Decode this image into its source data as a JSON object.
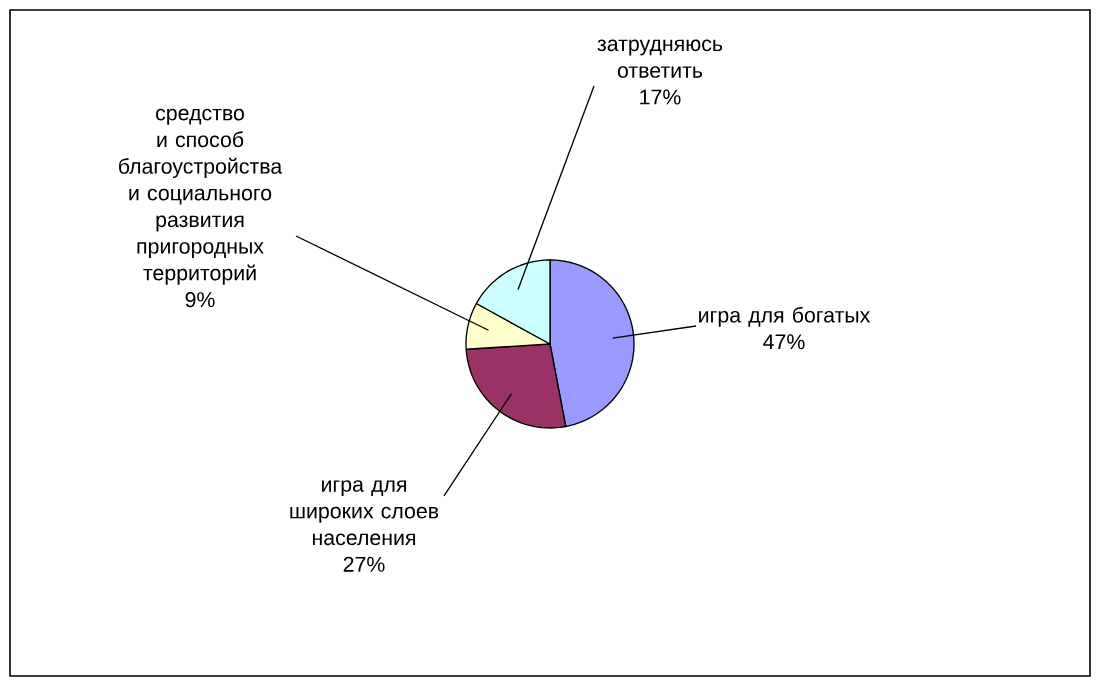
{
  "chart_data": {
    "type": "pie",
    "categories": [
      "игра для богатых",
      "игра для широких слоев населения",
      "средство и способ благоустройства и социального развития пригородных территорий",
      "затрудняюсь ответить"
    ],
    "values": [
      47,
      27,
      9,
      17
    ],
    "value_labels": [
      "47%",
      "27%",
      "9%",
      "17%"
    ],
    "colors": [
      "#9999ff",
      "#993366",
      "#ffffcc",
      "#ccffff"
    ]
  }
}
